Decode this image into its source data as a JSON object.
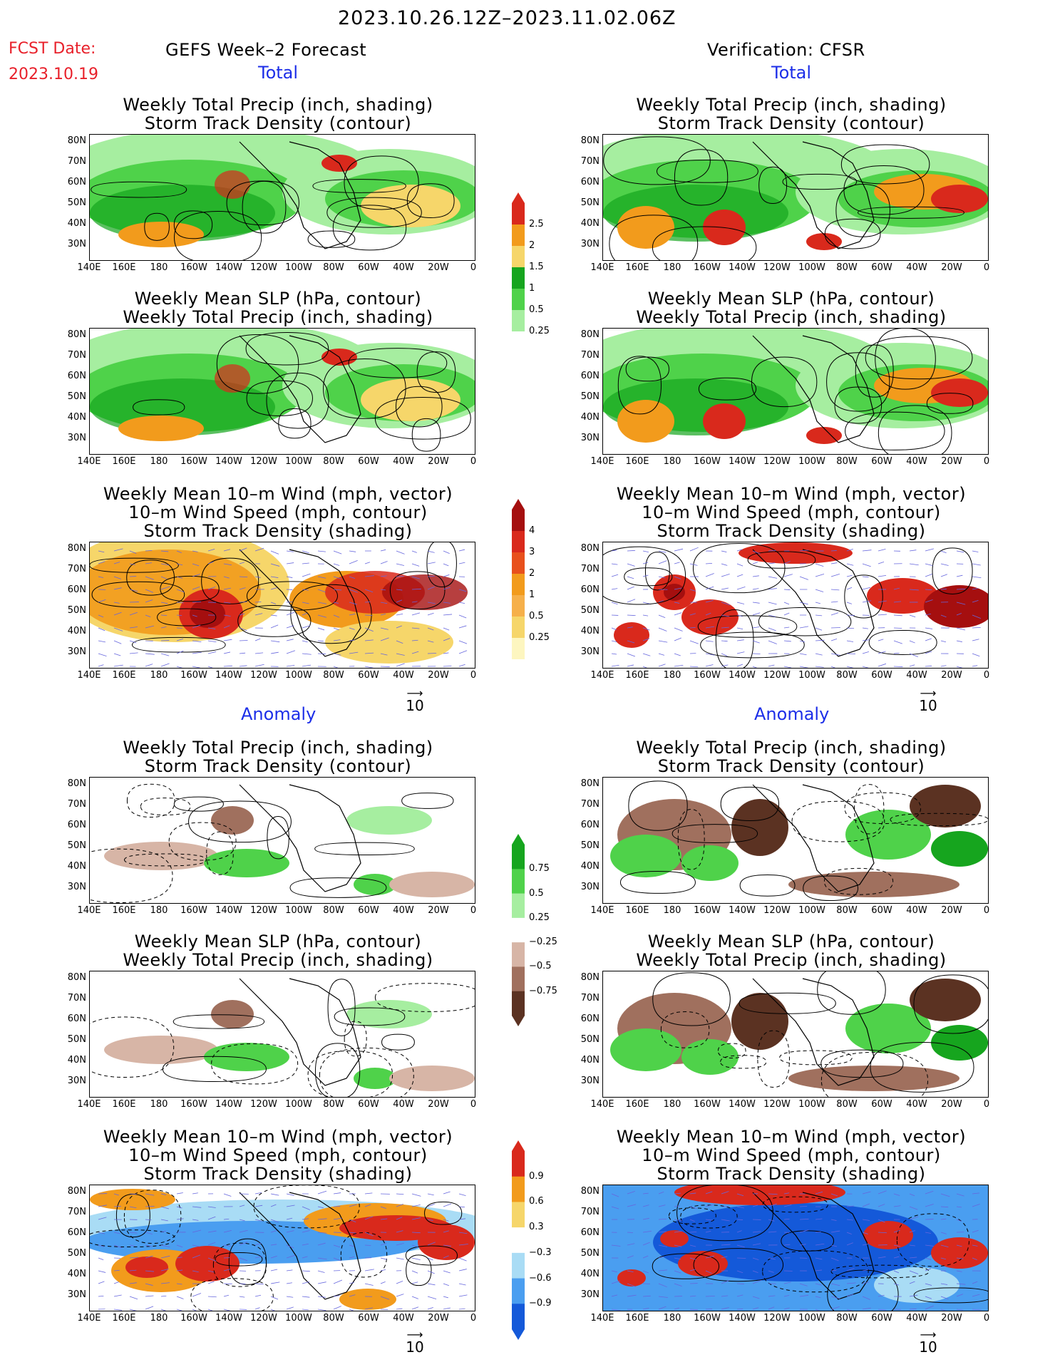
{
  "header": {
    "date_range": "2023.10.26.12Z–2023.11.02.06Z",
    "fcst_label": "FCST Date:",
    "fcst_date": "2023.10.19",
    "left_title": "GEFS Week–2 Forecast",
    "right_title": "Verification: CFSR"
  },
  "sections": {
    "total": "Total",
    "anomaly": "Anomaly"
  },
  "panel_titles": {
    "precip_track": [
      "Weekly Total Precip (inch, shading)",
      "Storm Track Density (contour)"
    ],
    "slp_precip": [
      "Weekly Mean SLP (hPa, contour)",
      "Weekly Total Precip (inch, shading)"
    ],
    "wind": [
      "Weekly Mean 10–m Wind (mph, vector)",
      "10–m Wind Speed (mph, contour)",
      "Storm Track Density (shading)"
    ]
  },
  "axes": {
    "lat_labels": [
      "80N",
      "70N",
      "60N",
      "50N",
      "40N",
      "30N"
    ],
    "lon_labels": [
      "140E",
      "160E",
      "180",
      "160W",
      "140W",
      "120W",
      "100W",
      "80W",
      "60W",
      "40W",
      "20W",
      "0"
    ]
  },
  "colorbars": {
    "total_precip": [
      "2.5",
      "2",
      "1.5",
      "1",
      "0.5",
      "0.25"
    ],
    "total_track": [
      "4",
      "3",
      "2",
      "1",
      "0.5",
      "0.25"
    ],
    "anom_precip": [
      "0.75",
      "0.5",
      "0.25",
      "−0.25",
      "−0.5",
      "−0.75"
    ],
    "anom_track": [
      "0.9",
      "0.6",
      "0.3",
      "−0.3",
      "−0.6",
      "−0.9"
    ]
  },
  "vector_ref": "10",
  "colors": {
    "green_light": "#a6eea0",
    "green_mid": "#4fd24a",
    "green_dark": "#16a51e",
    "orange": "#f29b1c",
    "yellow": "#f6d66a",
    "red": "#d9291c",
    "dark_red": "#a50f0f",
    "brown_light": "#d7b5a6",
    "brown_mid": "#a0705e",
    "brown_dark": "#5b3222",
    "blue_light": "#a9dcf5",
    "blue_mid": "#4a9ef0",
    "blue_dark": "#1459d9"
  }
}
